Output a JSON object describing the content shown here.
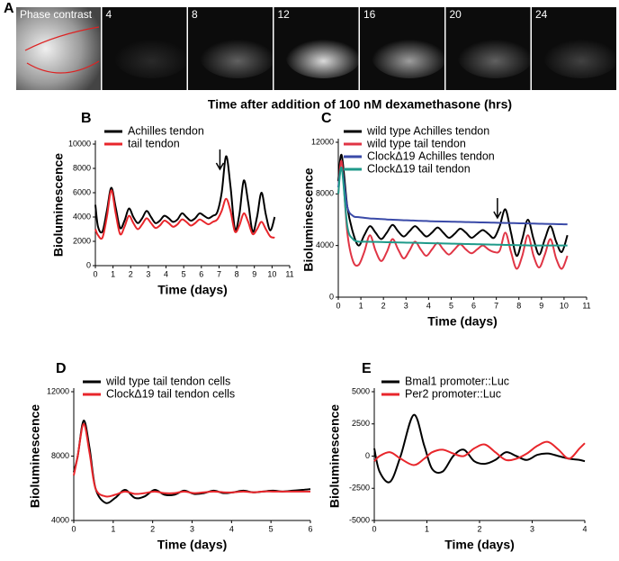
{
  "panel_a": {
    "panel": "A",
    "frames": [
      "Phase contrast",
      "4",
      "8",
      "12",
      "16",
      "20",
      "24"
    ],
    "caption": "Time after addition of 100 nM dexamethasone (hrs)"
  },
  "chart_data": [
    {
      "type": "line",
      "panel": "B",
      "xlabel": "Time (days)",
      "ylabel": "Bioluminescence",
      "x": [
        0,
        0.15,
        0.4,
        0.65,
        0.9,
        1.15,
        1.4,
        1.65,
        1.9,
        2.15,
        2.4,
        2.65,
        2.9,
        3.15,
        3.4,
        3.65,
        3.9,
        4.15,
        4.4,
        4.65,
        4.9,
        5.15,
        5.4,
        5.65,
        5.9,
        6.15,
        6.4,
        6.65,
        6.9,
        7.15,
        7.4,
        7.65,
        7.9,
        8.15,
        8.4,
        8.65,
        8.9,
        9.15,
        9.4,
        9.65,
        9.9,
        10.15
      ],
      "series": [
        {
          "name": "Achilles tendon",
          "color": "#000000",
          "values": [
            5000,
            3200,
            2800,
            4500,
            6400,
            4800,
            3100,
            3700,
            4700,
            4000,
            3500,
            3900,
            4500,
            4000,
            3500,
            3700,
            4100,
            3900,
            3600,
            3800,
            4300,
            4000,
            3700,
            3900,
            4300,
            4100,
            3900,
            4100,
            4400,
            6000,
            9000,
            6500,
            3000,
            4200,
            7000,
            5200,
            2800,
            4000,
            6000,
            4200,
            2900,
            4000
          ]
        },
        {
          "name": "tail tendon",
          "color": "#e8262b",
          "values": [
            3000,
            2500,
            2300,
            4000,
            6200,
            4300,
            2600,
            3200,
            4100,
            3500,
            3000,
            3400,
            3900,
            3500,
            3100,
            3300,
            3700,
            3500,
            3200,
            3400,
            3800,
            3600,
            3300,
            3500,
            3800,
            3600,
            3400,
            3600,
            3800,
            4500,
            5500,
            4500,
            2800,
            3300,
            4300,
            3600,
            2600,
            3000,
            3600,
            3000,
            2400,
            2300
          ]
        }
      ],
      "xlim": [
        0,
        11
      ],
      "xticks": [
        0,
        1,
        2,
        3,
        4,
        5,
        6,
        7,
        8,
        9,
        10,
        11
      ],
      "ylim": [
        0,
        10000
      ],
      "yticks": [
        0,
        2000,
        4000,
        6000,
        8000,
        10000
      ],
      "arrow_x": 7.05
    },
    {
      "type": "line",
      "panel": "C",
      "xlabel": "Time (days)",
      "ylabel": "Bioluminescence",
      "x": [
        0,
        0.15,
        0.4,
        0.65,
        0.9,
        1.15,
        1.4,
        1.65,
        1.9,
        2.15,
        2.4,
        2.65,
        2.9,
        3.15,
        3.4,
        3.65,
        3.9,
        4.15,
        4.4,
        4.65,
        4.9,
        5.15,
        5.4,
        5.65,
        5.9,
        6.15,
        6.4,
        6.65,
        6.9,
        7.15,
        7.4,
        7.65,
        7.9,
        8.15,
        8.4,
        8.65,
        8.9,
        9.15,
        9.4,
        9.65,
        9.9,
        10.15
      ],
      "series": [
        {
          "name": "wild type Achilles tendon",
          "color": "#000000",
          "values": [
            9000,
            11000,
            7000,
            5000,
            4000,
            4800,
            5500,
            5000,
            4500,
            5000,
            5600,
            5100,
            4700,
            5100,
            5500,
            5100,
            4700,
            5000,
            5400,
            5000,
            4600,
            4900,
            5300,
            5000,
            4600,
            4900,
            5200,
            4900,
            4600,
            5500,
            6800,
            5000,
            3200,
            4500,
            6000,
            4500,
            3300,
            4500,
            5500,
            4300,
            3500,
            4800
          ]
        },
        {
          "name": "wild type tail tendon",
          "color": "#e03545",
          "values": [
            8000,
            10500,
            5000,
            2800,
            2500,
            3500,
            4800,
            3600,
            2800,
            3500,
            4500,
            3700,
            3000,
            3600,
            4300,
            3700,
            3200,
            3700,
            4200,
            3700,
            3300,
            3700,
            4100,
            3700,
            3400,
            3700,
            4000,
            3700,
            3500,
            3600,
            5000,
            3500,
            2200,
            3200,
            4800,
            3200,
            2300,
            3300,
            4500,
            3000,
            2200,
            3200
          ]
        },
        {
          "name": "ClockΔ19 Achilles tendon",
          "color": "#3a4aa8",
          "values": [
            8500,
            10000,
            7000,
            6300,
            6200,
            6150,
            6100,
            6080,
            6050,
            6020,
            6000,
            5980,
            5960,
            5950,
            5930,
            5910,
            5900,
            5880,
            5870,
            5860,
            5850,
            5840,
            5830,
            5820,
            5810,
            5800,
            5790,
            5780,
            5770,
            5760,
            5750,
            5740,
            5730,
            5720,
            5710,
            5700,
            5690,
            5680,
            5670,
            5660,
            5650,
            5640
          ]
        },
        {
          "name": "ClockΔ19 tail tendon",
          "color": "#1f9a8a",
          "values": [
            8000,
            10000,
            5500,
            4500,
            4300,
            4300,
            4290,
            4280,
            4270,
            4260,
            4250,
            4240,
            4230,
            4220,
            4210,
            4200,
            4190,
            4180,
            4170,
            4160,
            4150,
            4140,
            4130,
            4120,
            4110,
            4100,
            4090,
            4080,
            4070,
            4060,
            4050,
            4040,
            4030,
            4020,
            4010,
            4000,
            4000,
            4000,
            4000,
            4000,
            4000,
            4000
          ]
        }
      ],
      "xlim": [
        0,
        11
      ],
      "xticks": [
        0,
        1,
        2,
        3,
        4,
        5,
        6,
        7,
        8,
        9,
        10,
        11
      ],
      "ylim": [
        0,
        12000
      ],
      "yticks": [
        0,
        4000,
        8000,
        12000
      ],
      "arrow_x": 7.05
    },
    {
      "type": "line",
      "panel": "D",
      "xlabel": "Time (days)",
      "ylabel": "Bioluminescence",
      "x": [
        0,
        0.1,
        0.25,
        0.4,
        0.55,
        0.8,
        1.05,
        1.3,
        1.55,
        1.8,
        2.05,
        2.3,
        2.55,
        2.8,
        3.05,
        3.3,
        3.55,
        3.8,
        4.05,
        4.3,
        4.55,
        4.8,
        5.05,
        5.3,
        5.55,
        5.8,
        6
      ],
      "series": [
        {
          "name": "wild type tail tendon cells",
          "color": "#000000",
          "values": [
            7000,
            8000,
            10200,
            8500,
            6000,
            5100,
            5400,
            5900,
            5400,
            5500,
            5900,
            5600,
            5600,
            5850,
            5650,
            5700,
            5850,
            5700,
            5750,
            5850,
            5750,
            5800,
            5850,
            5800,
            5850,
            5900,
            5950
          ]
        },
        {
          "name": "ClockΔ19 tail tendon cells",
          "color": "#e8262b",
          "values": [
            6800,
            8000,
            10000,
            8200,
            6000,
            5500,
            5600,
            5800,
            5650,
            5700,
            5800,
            5700,
            5700,
            5800,
            5700,
            5750,
            5800,
            5750,
            5750,
            5800,
            5750,
            5800,
            5800,
            5800,
            5800,
            5800,
            5800
          ]
        }
      ],
      "xlim": [
        0,
        6
      ],
      "xticks": [
        0,
        1,
        2,
        3,
        4,
        5,
        6
      ],
      "ylim": [
        4000,
        12000
      ],
      "yticks": [
        4000,
        8000,
        12000
      ]
    },
    {
      "type": "line",
      "panel": "E",
      "xlabel": "Time (days)",
      "ylabel": "Bioluminescence",
      "x": [
        0,
        0.1,
        0.3,
        0.5,
        0.75,
        0.95,
        1.1,
        1.3,
        1.5,
        1.7,
        1.9,
        2.1,
        2.3,
        2.5,
        2.7,
        2.9,
        3.1,
        3.3,
        3.5,
        3.7,
        3.9,
        4
      ],
      "series": [
        {
          "name": "Bmal1 promoter::Luc",
          "color": "#000000",
          "values": [
            600,
            -1200,
            -2000,
            0,
            3200,
            800,
            -1000,
            -1200,
            0,
            500,
            -400,
            -600,
            -300,
            300,
            0,
            -300,
            100,
            200,
            0,
            -200,
            -300,
            -400
          ]
        },
        {
          "name": "Per2 promoter::Luc",
          "color": "#e8262b",
          "values": [
            -400,
            0,
            300,
            -200,
            -700,
            -200,
            300,
            500,
            200,
            0,
            600,
            900,
            300,
            -300,
            -200,
            200,
            800,
            1100,
            500,
            -200,
            600,
            1000
          ]
        }
      ],
      "xlim": [
        0,
        4
      ],
      "xticks": [
        0,
        1,
        2,
        3,
        4
      ],
      "ylim": [
        -5000,
        5000
      ],
      "yticks": [
        -5000,
        -2500,
        0,
        2500,
        5000
      ]
    }
  ]
}
